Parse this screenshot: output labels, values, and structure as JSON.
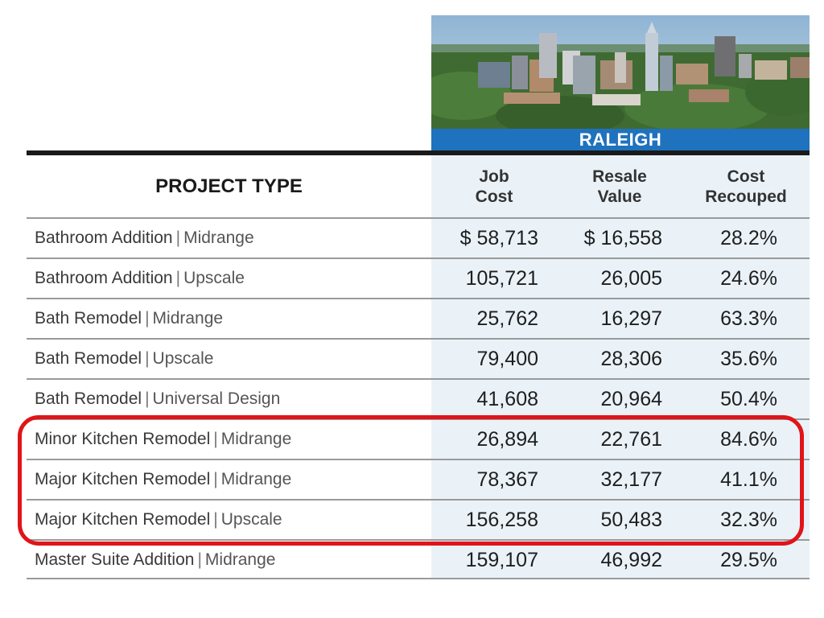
{
  "banner": {
    "city": "RALEIGH"
  },
  "table": {
    "headers": {
      "project": "PROJECT TYPE",
      "job_cost": "Job\nCost",
      "resale_value": "Resale\nValue",
      "cost_recouped": "Cost\nRecouped"
    },
    "rows": [
      {
        "name": "Bathroom Addition",
        "tier": "Midrange",
        "job": "$ 58,713",
        "resale": "$ 16,558",
        "recoup": "28.2%"
      },
      {
        "name": "Bathroom Addition",
        "tier": "Upscale",
        "job": "105,721",
        "resale": "26,005",
        "recoup": "24.6%"
      },
      {
        "name": "Bath Remodel",
        "tier": "Midrange",
        "job": "25,762",
        "resale": "16,297",
        "recoup": "63.3%"
      },
      {
        "name": "Bath Remodel",
        "tier": "Upscale",
        "job": "79,400",
        "resale": "28,306",
        "recoup": "35.6%"
      },
      {
        "name": "Bath Remodel",
        "tier": "Universal Design",
        "job": "41,608",
        "resale": "20,964",
        "recoup": "50.4%"
      },
      {
        "name": "Minor Kitchen Remodel",
        "tier": "Midrange",
        "job": "26,894",
        "resale": "22,761",
        "recoup": "84.6%"
      },
      {
        "name": "Major Kitchen Remodel",
        "tier": "Midrange",
        "job": "78,367",
        "resale": "32,177",
        "recoup": "41.1%"
      },
      {
        "name": "Major Kitchen Remodel",
        "tier": "Upscale",
        "job": "156,258",
        "resale": "50,483",
        "recoup": "32.3%"
      },
      {
        "name": "Master Suite Addition",
        "tier": "Midrange",
        "job": "159,107",
        "resale": "46,992",
        "recoup": "29.5%"
      }
    ],
    "separator": "|"
  },
  "colors": {
    "banner_blue": "#1f72bd",
    "column_shade": "#eaf2f8",
    "highlight_red": "#e0141a"
  }
}
